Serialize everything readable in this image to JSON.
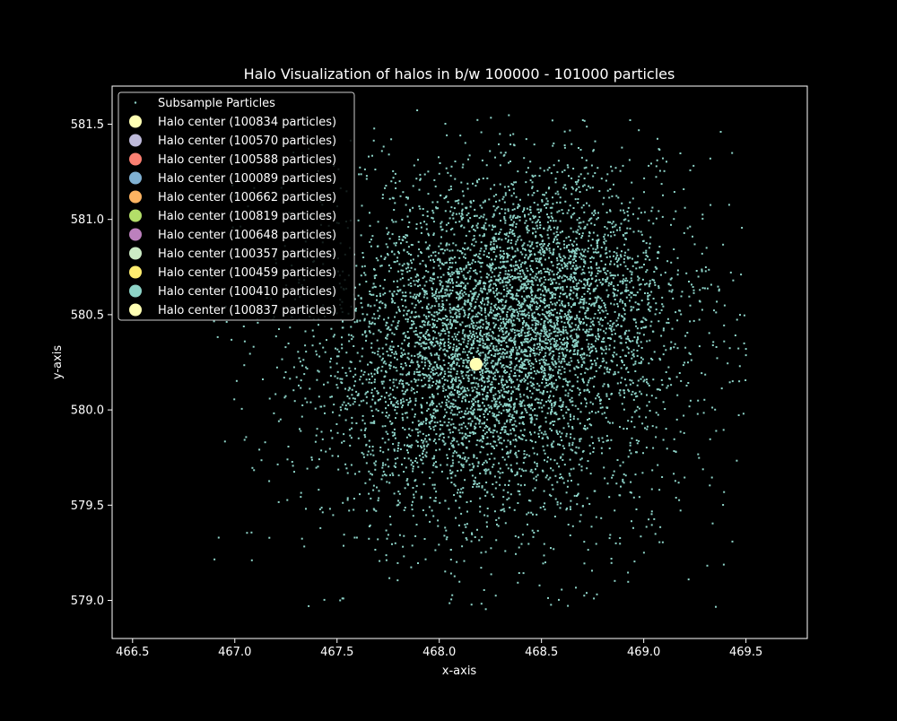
{
  "chart_data": {
    "type": "scatter",
    "title": "Halo Visualization of halos in b/w 100000 - 101000 particles",
    "xlabel": "x-axis",
    "ylabel": "y-axis",
    "xlim": [
      466.4,
      469.8
    ],
    "ylim": [
      578.8,
      581.7
    ],
    "xticks": [
      "466.5",
      "467.0",
      "467.5",
      "468.0",
      "468.5",
      "469.0",
      "469.5"
    ],
    "yticks": [
      "579.0",
      "579.5",
      "580.0",
      "580.5",
      "581.0",
      "581.5"
    ],
    "grid": false,
    "legend_position": "top-left",
    "background": "#000000",
    "axis_color": "#ffffff",
    "particle_series": {
      "name": "Subsample Particles",
      "color": "#8dd3c7",
      "clusters": [
        {
          "cx": 468.18,
          "cy": 580.2,
          "sx": 0.36,
          "sy": 0.36,
          "count": 2600
        },
        {
          "cx": 468.5,
          "cy": 580.65,
          "sx": 0.3,
          "sy": 0.3,
          "count": 1900
        },
        {
          "cx": 468.3,
          "cy": 580.3,
          "sx": 0.58,
          "sy": 0.55,
          "count": 2300
        }
      ]
    },
    "halo_centers": [
      {
        "name": "Halo center (100834 particles)",
        "color": "#ffffb3",
        "x": 468.18,
        "y": 580.24
      },
      {
        "name": "Halo center (100570 particles)",
        "color": "#bebada",
        "x": 468.18,
        "y": 580.24
      },
      {
        "name": "Halo center (100588 particles)",
        "color": "#fb8072",
        "x": 468.18,
        "y": 580.24
      },
      {
        "name": "Halo center (100089 particles)",
        "color": "#80b1d3",
        "x": 468.18,
        "y": 580.24
      },
      {
        "name": "Halo center (100662 particles)",
        "color": "#fdb462",
        "x": 468.18,
        "y": 580.24
      },
      {
        "name": "Halo center (100819 particles)",
        "color": "#b3de69",
        "x": 468.18,
        "y": 580.24
      },
      {
        "name": "Halo center (100648 particles)",
        "color": "#bc80bd",
        "x": 468.18,
        "y": 580.24
      },
      {
        "name": "Halo center (100357 particles)",
        "color": "#ccebc5",
        "x": 468.18,
        "y": 580.24
      },
      {
        "name": "Halo center (100459 particles)",
        "color": "#ffed6f",
        "x": 468.18,
        "y": 580.24
      },
      {
        "name": "Halo center (100410 particles)",
        "color": "#8dd3c7",
        "x": 468.18,
        "y": 580.24
      },
      {
        "name": "Halo center (100837 particles)",
        "color": "#ffffb3",
        "x": 468.18,
        "y": 580.24
      }
    ]
  }
}
